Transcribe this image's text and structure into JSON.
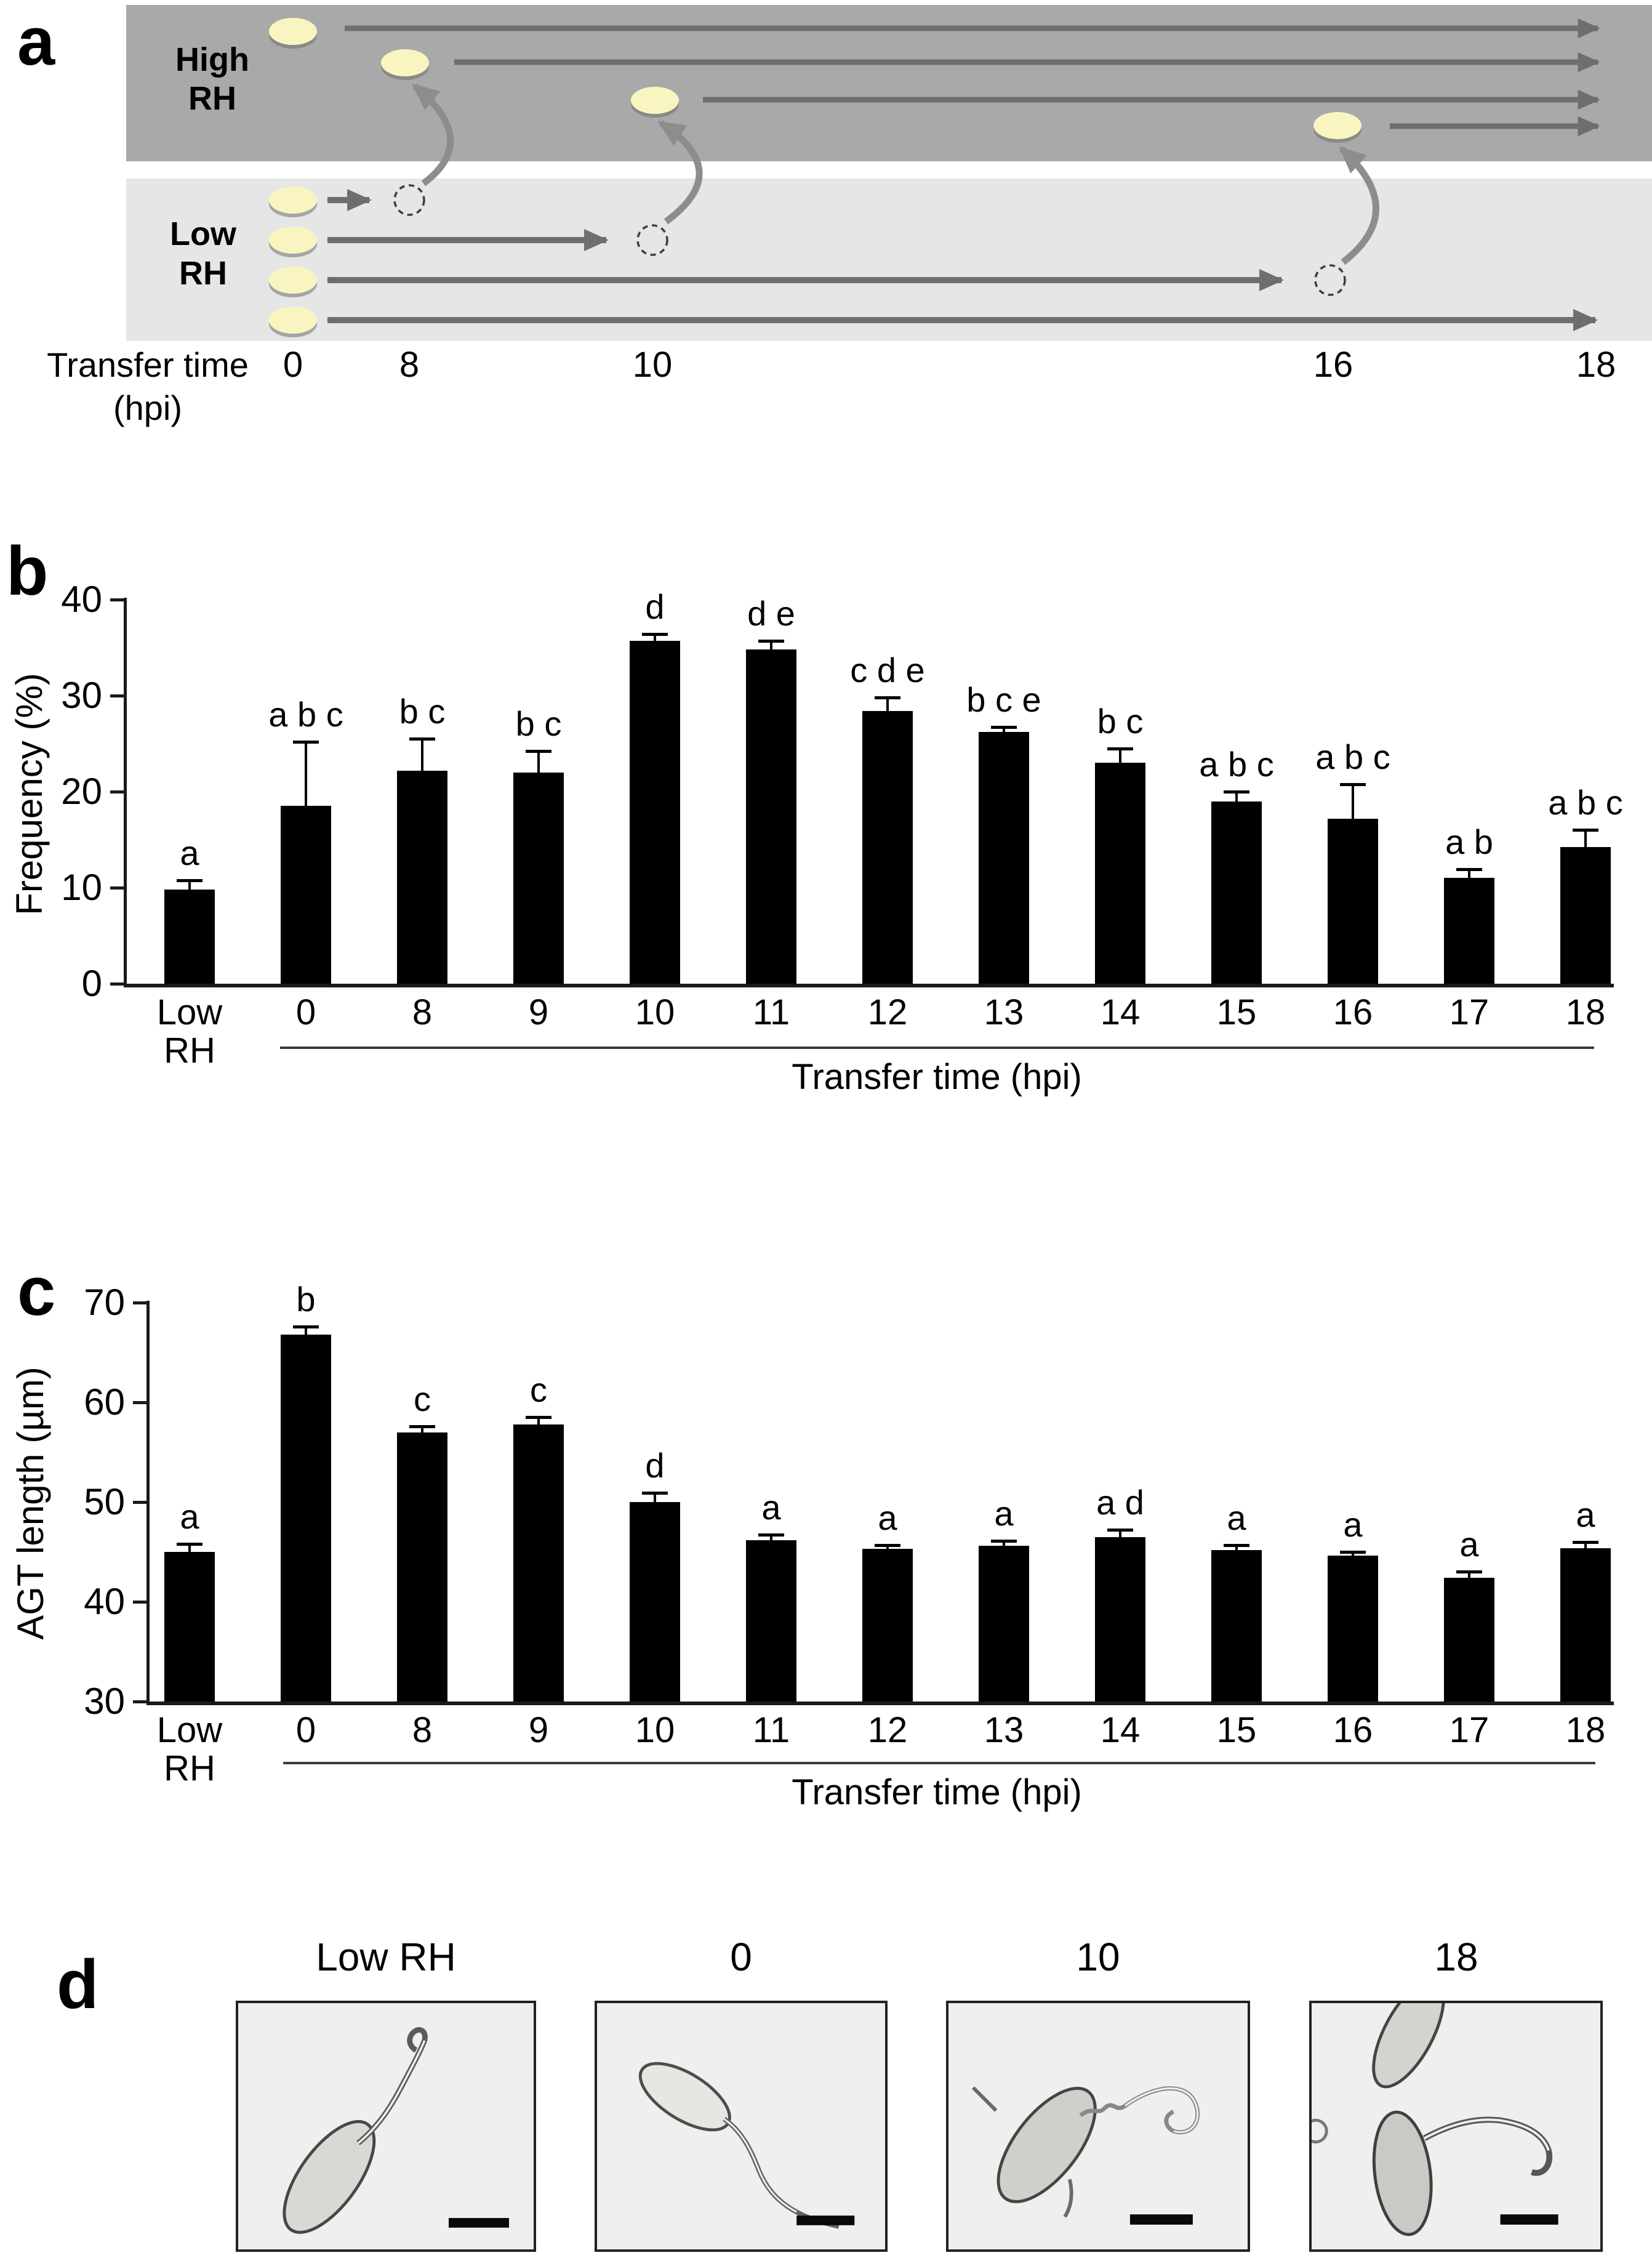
{
  "panel_a": {
    "label": "a",
    "high_band_label": [
      "High",
      "RH"
    ],
    "low_band_label": [
      "Low",
      "RH"
    ],
    "axis_title": [
      "Transfer time",
      "(hpi)"
    ],
    "ticks": [
      "0",
      "8",
      "10",
      "16",
      "18"
    ],
    "colors": {
      "high_band": "#a9a9a9",
      "low_band": "#e6e6e6",
      "arrow": "#6e6e6e",
      "curved_arrow": "#8d8d8d",
      "spore_fill": "#f8f5c1",
      "spore_shadow": "#6f6f6f"
    }
  },
  "chart_data": [
    {
      "type": "bar",
      "panel_label": "b",
      "ylabel": "Frequency (%)",
      "xlabel": "Transfer time (hpi)",
      "categories": [
        "Low RH",
        "0",
        "8",
        "9",
        "10",
        "11",
        "12",
        "13",
        "14",
        "15",
        "16",
        "17",
        "18"
      ],
      "values": [
        9.8,
        18.5,
        22.2,
        22.0,
        35.7,
        34.8,
        28.4,
        26.2,
        23.0,
        19.0,
        17.2,
        11.0,
        14.2
      ],
      "errors": [
        1.0,
        6.7,
        3.3,
        2.2,
        0.7,
        0.9,
        1.4,
        0.5,
        1.5,
        1.0,
        3.6,
        0.9,
        1.8
      ],
      "sig_letters": [
        "a",
        "a b c",
        "b c",
        "b c",
        "d",
        "d e",
        "c d e",
        "b c e",
        "b c",
        "a b c",
        "a b c",
        "a b",
        "a b c"
      ],
      "ylim": [
        0,
        40
      ],
      "yticks": [
        0,
        10,
        20,
        30,
        40
      ],
      "bar_color": "#000000",
      "grid": false
    },
    {
      "type": "bar",
      "panel_label": "c",
      "ylabel": "AGT length (µm)",
      "xlabel": "Transfer time (hpi)",
      "categories": [
        "Low RH",
        "0",
        "8",
        "9",
        "10",
        "11",
        "12",
        "13",
        "14",
        "15",
        "16",
        "17",
        "18"
      ],
      "values": [
        45.0,
        66.8,
        57.0,
        57.8,
        50.0,
        46.2,
        45.3,
        45.6,
        46.5,
        45.2,
        44.6,
        42.4,
        45.4
      ],
      "errors": [
        0.8,
        0.8,
        0.6,
        0.7,
        0.9,
        0.5,
        0.4,
        0.5,
        0.7,
        0.5,
        0.4,
        0.6,
        0.6
      ],
      "sig_letters": [
        "a",
        "b",
        "c",
        "c",
        "d",
        "a",
        "a",
        "a",
        "a d",
        "a",
        "a",
        "a",
        "a"
      ],
      "ylim": [
        30,
        70
      ],
      "yticks": [
        30,
        40,
        50,
        60,
        70
      ],
      "bar_color": "#000000",
      "grid": false
    }
  ],
  "panel_d": {
    "label": "d",
    "titles": [
      "Low RH",
      "0",
      "10",
      "18"
    ]
  }
}
